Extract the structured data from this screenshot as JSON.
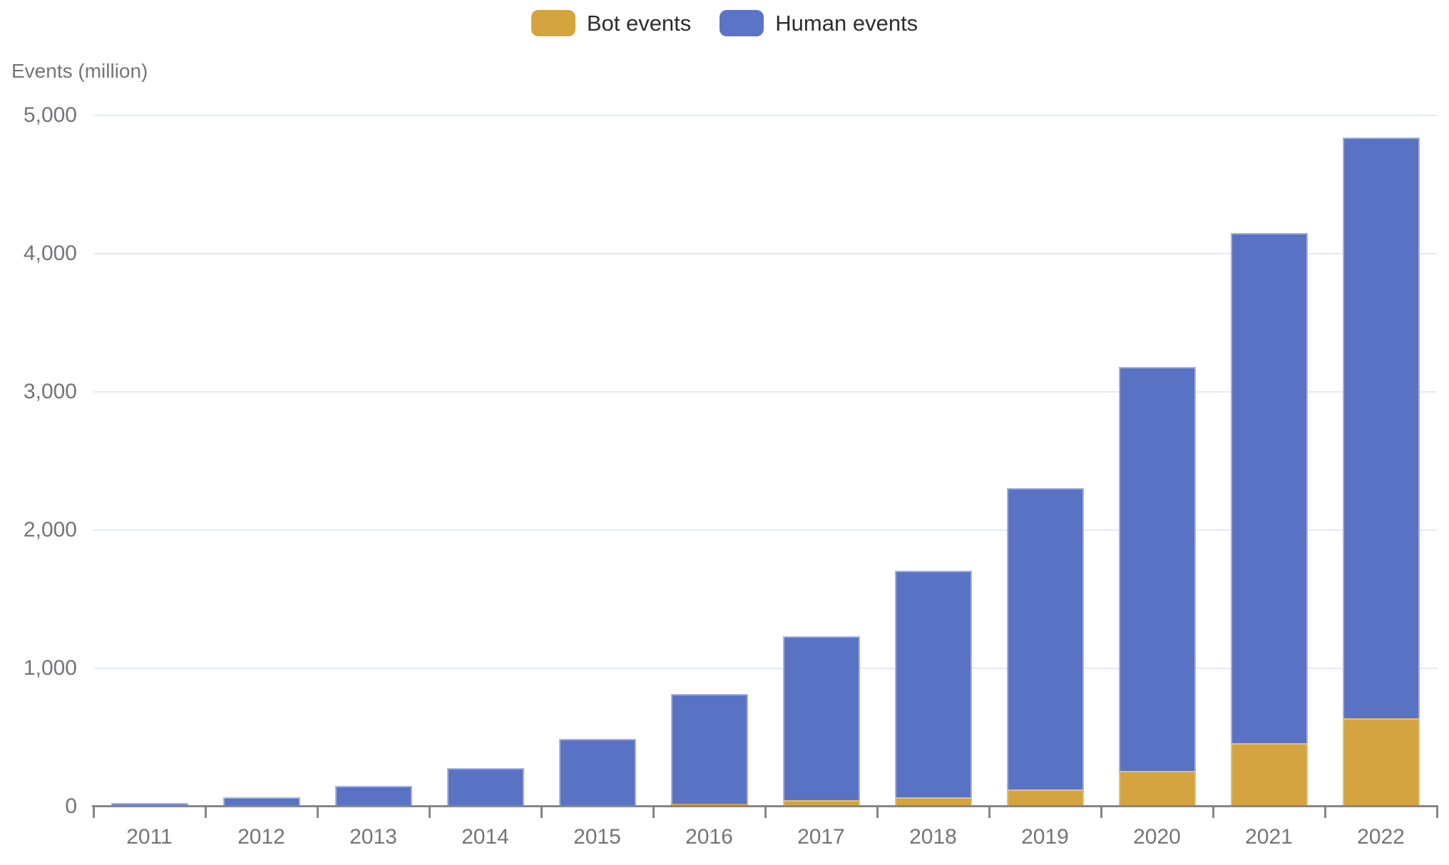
{
  "legend": {
    "items": [
      {
        "label": "Bot events",
        "color": "#d4a43e"
      },
      {
        "label": "Human events",
        "color": "#5b74c7"
      }
    ]
  },
  "y_axis": {
    "title": "Events (million)",
    "tick_values": [
      0,
      1000,
      2000,
      3000,
      4000,
      5000
    ],
    "tick_labels": [
      "0",
      "1,000",
      "2,000",
      "3,000",
      "4,000",
      "5,000"
    ],
    "max": 5000
  },
  "x_axis": {
    "categories": [
      "2011",
      "2012",
      "2013",
      "2014",
      "2015",
      "2016",
      "2017",
      "2018",
      "2019",
      "2020",
      "2021",
      "2022"
    ]
  },
  "chart_data": {
    "type": "bar",
    "stacked": true,
    "title": "",
    "ylabel": "Events (million)",
    "ylim": [
      0,
      5000
    ],
    "grid": true,
    "legend_position": "top-center",
    "categories": [
      "2011",
      "2012",
      "2013",
      "2014",
      "2015",
      "2016",
      "2017",
      "2018",
      "2019",
      "2020",
      "2021",
      "2022"
    ],
    "series": [
      {
        "name": "Bot events",
        "color": "#d3a43f",
        "values": [
          0,
          1,
          3,
          5,
          10,
          22,
          45,
          65,
          125,
          260,
          460,
          640
        ]
      },
      {
        "name": "Human events",
        "color": "#5a72c4",
        "values": [
          27,
          69,
          147,
          275,
          480,
          790,
          1185,
          1640,
          2180,
          2920,
          3690,
          4200
        ]
      }
    ],
    "totals": [
      27,
      70,
      150,
      280,
      490,
      812,
      1230,
      1705,
      2305,
      3180,
      4150,
      4840
    ]
  },
  "colors": {
    "grid_line": "#e5e9f5",
    "axis_line": "#85868b",
    "axis_text": "#74757a",
    "legend_text": "#2d2d30"
  }
}
